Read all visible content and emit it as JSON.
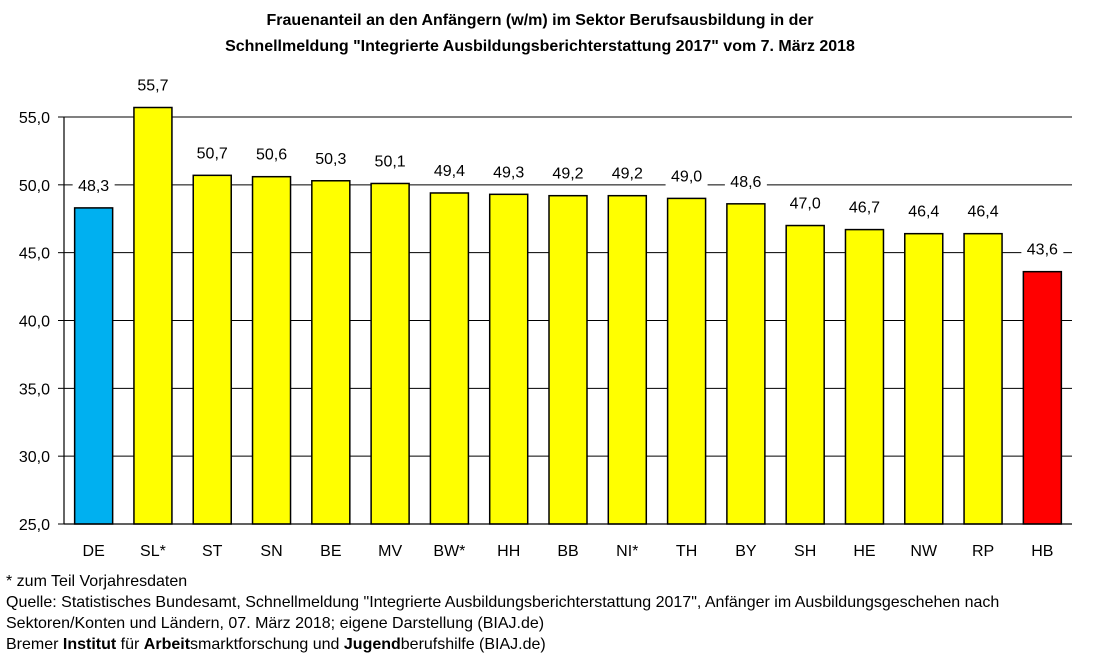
{
  "chart_data": {
    "type": "bar",
    "title_line1": "Frauenanteil an den Anfängern (w/m) im  Sektor Berufsausbildung in der",
    "title_line2": "Schnellmeldung \"Integrierte Ausbildungsberichterstattung 2017\" vom 7. März 2018",
    "categories": [
      "DE",
      "SL*",
      "ST",
      "SN",
      "BE",
      "MV",
      "BW*",
      "HH",
      "BB",
      "NI*",
      "TH",
      "BY",
      "SH",
      "HE",
      "NW",
      "RP",
      "HB"
    ],
    "values": [
      48.3,
      55.7,
      50.7,
      50.6,
      50.3,
      50.1,
      49.4,
      49.3,
      49.2,
      49.2,
      49.0,
      48.6,
      47.0,
      46.7,
      46.4,
      46.4,
      43.6
    ],
    "value_labels": [
      "48,3",
      "55,7",
      "50,7",
      "50,6",
      "50,3",
      "50,1",
      "49,4",
      "49,3",
      "49,2",
      "49,2",
      "49,0",
      "48,6",
      "47,0",
      "46,7",
      "46,4",
      "46,4",
      "43,6"
    ],
    "bar_colors": [
      "#00B0F0",
      "#FFFF00",
      "#FFFF00",
      "#FFFF00",
      "#FFFF00",
      "#FFFF00",
      "#FFFF00",
      "#FFFF00",
      "#FFFF00",
      "#FFFF00",
      "#FFFF00",
      "#FFFF00",
      "#FFFF00",
      "#FFFF00",
      "#FFFF00",
      "#FFFF00",
      "#FF0000"
    ],
    "ylim": [
      25.0,
      55.0
    ],
    "yticks": [
      25.0,
      30.0,
      35.0,
      40.0,
      45.0,
      50.0,
      55.0
    ],
    "ytick_labels": [
      "25,0",
      "30,0",
      "35,0",
      "40,0",
      "45,0",
      "50,0",
      "55,0"
    ],
    "grid": true,
    "xlabel": "",
    "ylabel": ""
  },
  "notes": {
    "footnote": "* zum Teil Vorjahresdaten",
    "source_line1": "Quelle: Statistisches Bundesamt, Schnellmeldung \"Integrierte Ausbildungsberichterstattung 2017\", Anfänger im Ausbildungsgeschehen nach",
    "source_line2": "Sektoren/Konten und Ländern, 07. März 2018; eigene Darstellung (BIAJ.de)",
    "org": {
      "p1": "Bremer ",
      "b1": "Institut",
      "p2": " für ",
      "b2": "Arbeit",
      "p3": "smarktforschung und ",
      "b3": "Jugend",
      "p4": "berufshilfe (BIAJ.de)"
    }
  }
}
